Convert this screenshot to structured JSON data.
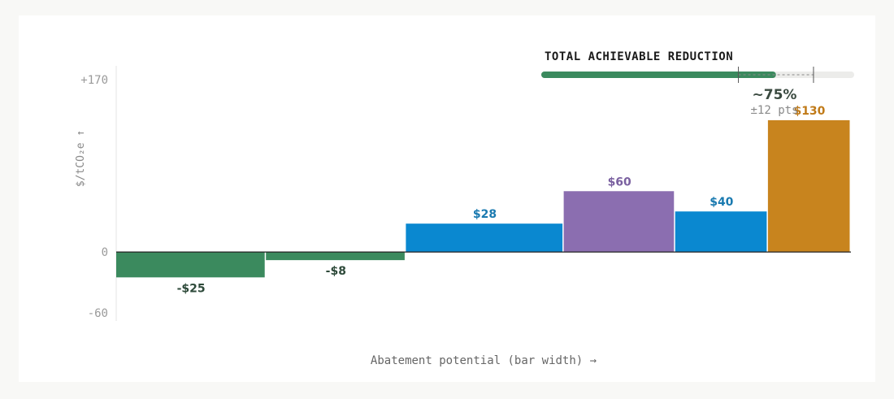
{
  "chart_data": {
    "type": "bar",
    "subtype": "marginal-abatement-cost-curve",
    "xlabel": "Abatement potential (bar width) →",
    "ylabel": "$/tCO₂e ↑",
    "ylim": [
      -60,
      170
    ],
    "yticks": [
      {
        "value": 170,
        "label": "+170"
      },
      {
        "value": 0,
        "label": "0"
      },
      {
        "value": -60,
        "label": "-60"
      }
    ],
    "bars": [
      {
        "value": -25,
        "label": "-$25",
        "width": 184,
        "color": "#3b8a5e",
        "label_color": "#2e4a3a"
      },
      {
        "value": -8,
        "label": "-$8",
        "width": 172,
        "color": "#3b8a5e",
        "label_color": "#2e4a3a"
      },
      {
        "value": 28,
        "label": "$28",
        "width": 194,
        "color": "#0a88d0",
        "label_color": "#1a7ab0"
      },
      {
        "value": 60,
        "label": "$60",
        "width": 137,
        "color": "#8b6eb0",
        "label_color": "#7a60a0"
      },
      {
        "value": 40,
        "label": "$40",
        "width": 114,
        "color": "#0a88d0",
        "label_color": "#1a7ab0"
      },
      {
        "value": 130,
        "label": "$130",
        "width": 102,
        "color": "#c8841e",
        "label_color": "#c07a18"
      }
    ],
    "gauge": {
      "title": "TOTAL ACHIEVABLE REDUCTION",
      "value_label": "~75%",
      "uncertainty_label": "±12 pts",
      "value": 0.75,
      "low": 0.63,
      "high": 0.87,
      "fill_color": "#3b8a5e",
      "track_color": "#ececea"
    }
  }
}
